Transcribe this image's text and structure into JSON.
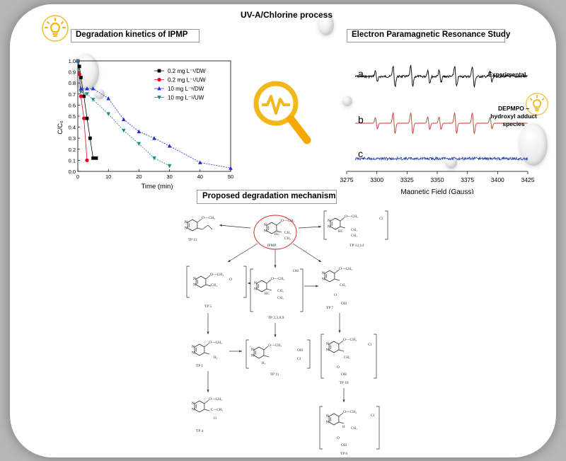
{
  "header": {
    "title": "UV-A/Chlorine process"
  },
  "kinetics": {
    "title": "Degradation kinetics of IPMP"
  },
  "epr": {
    "title": "Electron Paramagnetic Resonance Study",
    "xlabel": "Magnetic Field (Gauss)",
    "xticks": [
      "3275",
      "3300",
      "3325",
      "3350",
      "3375",
      "3400",
      "3425"
    ],
    "trace_labels": [
      "a",
      "b",
      "c"
    ],
    "annotations": {
      "experimental": "Experimental",
      "dmpo_line1": "DEPMPO –",
      "dmpo_line2": "hydroxyl adduct",
      "dmpo_line3": "species"
    }
  },
  "mechanism": {
    "title": "Proposed degradation mechanism",
    "center": "IPMP",
    "labels": {
      "tp13": "TP 13",
      "tp1214": "TP 12,14",
      "tp5": "TP 5",
      "tp2389": "TP 2,3,8,9",
      "tp7": "TP 7",
      "tp1": "TP 1",
      "tp11": "TP 11",
      "tp10": "TP 10",
      "tp4": "TP 4",
      "tp6": "TP 6"
    },
    "groups": {
      "ome": "O—CH₃",
      "ch3": "CH₃",
      "hc": "HC",
      "cl": "Cl",
      "oh": "OH",
      "h2": "H₂",
      "acetyl": "C—CH₃",
      "o": "O",
      "h": "H"
    }
  },
  "chart_data": {
    "type": "line",
    "title": "",
    "xlabel": "Time (min)",
    "ylabel": "C/C₀",
    "xlim": [
      0,
      50
    ],
    "ylim": [
      0.0,
      1.0
    ],
    "xticks": [
      "0",
      "10",
      "20",
      "30",
      "40",
      "50"
    ],
    "yticks": [
      "0.0",
      "0.1",
      "0.2",
      "0.3",
      "0.4",
      "0.5",
      "0.6",
      "0.7",
      "0.8",
      "0.9",
      "1.0"
    ],
    "legend_position": "top-right",
    "series": [
      {
        "name": "0.2 mg L⁻¹/DW",
        "color": "#000000",
        "marker": "square",
        "x": [
          0,
          0.5,
          1,
          2,
          3,
          4,
          5,
          6
        ],
        "y": [
          1.0,
          0.95,
          0.85,
          0.68,
          0.48,
          0.3,
          0.12,
          0.12
        ]
      },
      {
        "name": "0.2 mg L⁻¹/UW",
        "color": "#e8001c",
        "marker": "circle",
        "x": [
          0,
          0.5,
          1,
          2,
          3
        ],
        "y": [
          1.0,
          0.88,
          0.68,
          0.48,
          0.1
        ]
      },
      {
        "name": "10 mg L⁻¹/DW",
        "color": "#1f2fd6",
        "marker": "triangle-up",
        "x": [
          0,
          1,
          3,
          5,
          10,
          15,
          20,
          25,
          30,
          40,
          50
        ],
        "y": [
          1.0,
          0.75,
          0.75,
          0.75,
          0.66,
          0.47,
          0.36,
          0.3,
          0.23,
          0.08,
          0.03
        ]
      },
      {
        "name": "10 mg L⁻¹/UW",
        "color": "#1a8a8a",
        "marker": "triangle-down",
        "x": [
          0,
          1,
          3,
          5,
          10,
          15,
          20,
          25,
          30
        ],
        "y": [
          1.0,
          0.72,
          0.7,
          0.65,
          0.52,
          0.37,
          0.25,
          0.12,
          0.05
        ]
      }
    ]
  },
  "colors": {
    "accent_icon": "#f2b71a",
    "magnifier_handle": "#f7a800",
    "bubble_outline": "#d82a2a",
    "epr_experimental": "#000000",
    "epr_simulated": "#c0392b",
    "epr_blank": "#1f3aa8"
  }
}
